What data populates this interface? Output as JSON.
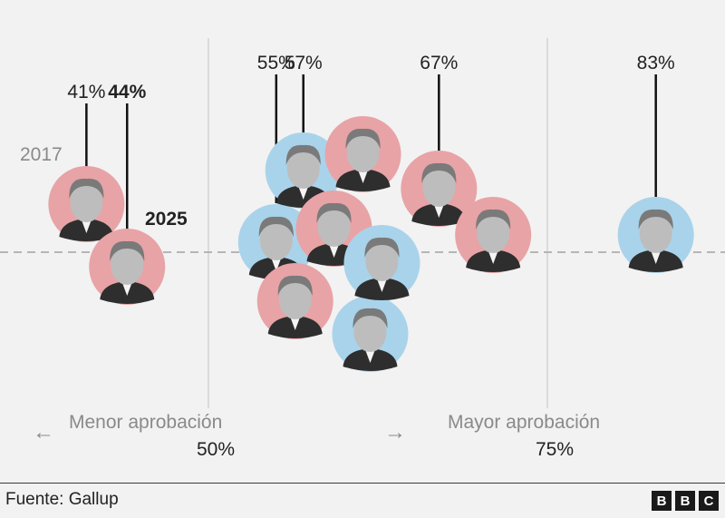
{
  "chart_data": {
    "type": "scatter",
    "annotations": {
      "less_approval": "Menor aprobación",
      "more_approval": "Mayor aprobación",
      "year_2017": "2017",
      "year_2025": "2025",
      "left_arrow": "←",
      "right_arrow": "→"
    },
    "ticks": [
      {
        "value": 50,
        "label": "50%"
      },
      {
        "value": 75,
        "label": "75%"
      }
    ],
    "points": [
      {
        "value": 41,
        "label": "41%",
        "party": "republican",
        "icon": "trump-2017-portrait",
        "bold": false
      },
      {
        "value": 44,
        "label": "44%",
        "party": "republican",
        "icon": "trump-2025-portrait",
        "bold": true
      },
      {
        "value": 55,
        "label": "55%",
        "party": "democrat",
        "icon": "clinton-portrait",
        "bold": false
      },
      {
        "value": 57,
        "label": "57%",
        "party": "democrat",
        "icon": "biden-portrait",
        "bold": false
      },
      {
        "value": 57,
        "label": "",
        "party": "republican",
        "icon": "bush-sr-portrait",
        "bold": false
      },
      {
        "value": 62,
        "label": "",
        "party": "republican",
        "icon": "nixon-portrait",
        "bold": false
      },
      {
        "value": 62,
        "label": "",
        "party": "republican",
        "icon": "bush-jr-portrait",
        "bold": false
      },
      {
        "value": 63,
        "label": "",
        "party": "democrat",
        "icon": "carter-portrait",
        "bold": false
      },
      {
        "value": 67,
        "label": "67%",
        "party": "republican",
        "icon": "reagan-portrait",
        "bold": false
      },
      {
        "value": 64,
        "label": "",
        "party": "democrat",
        "icon": "obama-portrait",
        "bold": false
      },
      {
        "value": 71,
        "label": "",
        "party": "republican",
        "icon": "eisenhower-portrait",
        "bold": false
      },
      {
        "value": 83,
        "label": "83%",
        "party": "democrat",
        "icon": "kennedy-portrait",
        "bold": false
      }
    ]
  },
  "colors": {
    "republican": "#e8a3a6",
    "democrat": "#a9d3ea",
    "background": "#f2f2f2",
    "text": "#222222",
    "muted": "#8a8a8a"
  },
  "footer": {
    "source": "Fuente: Gallup",
    "logo_letters": [
      "B",
      "B",
      "C"
    ]
  }
}
